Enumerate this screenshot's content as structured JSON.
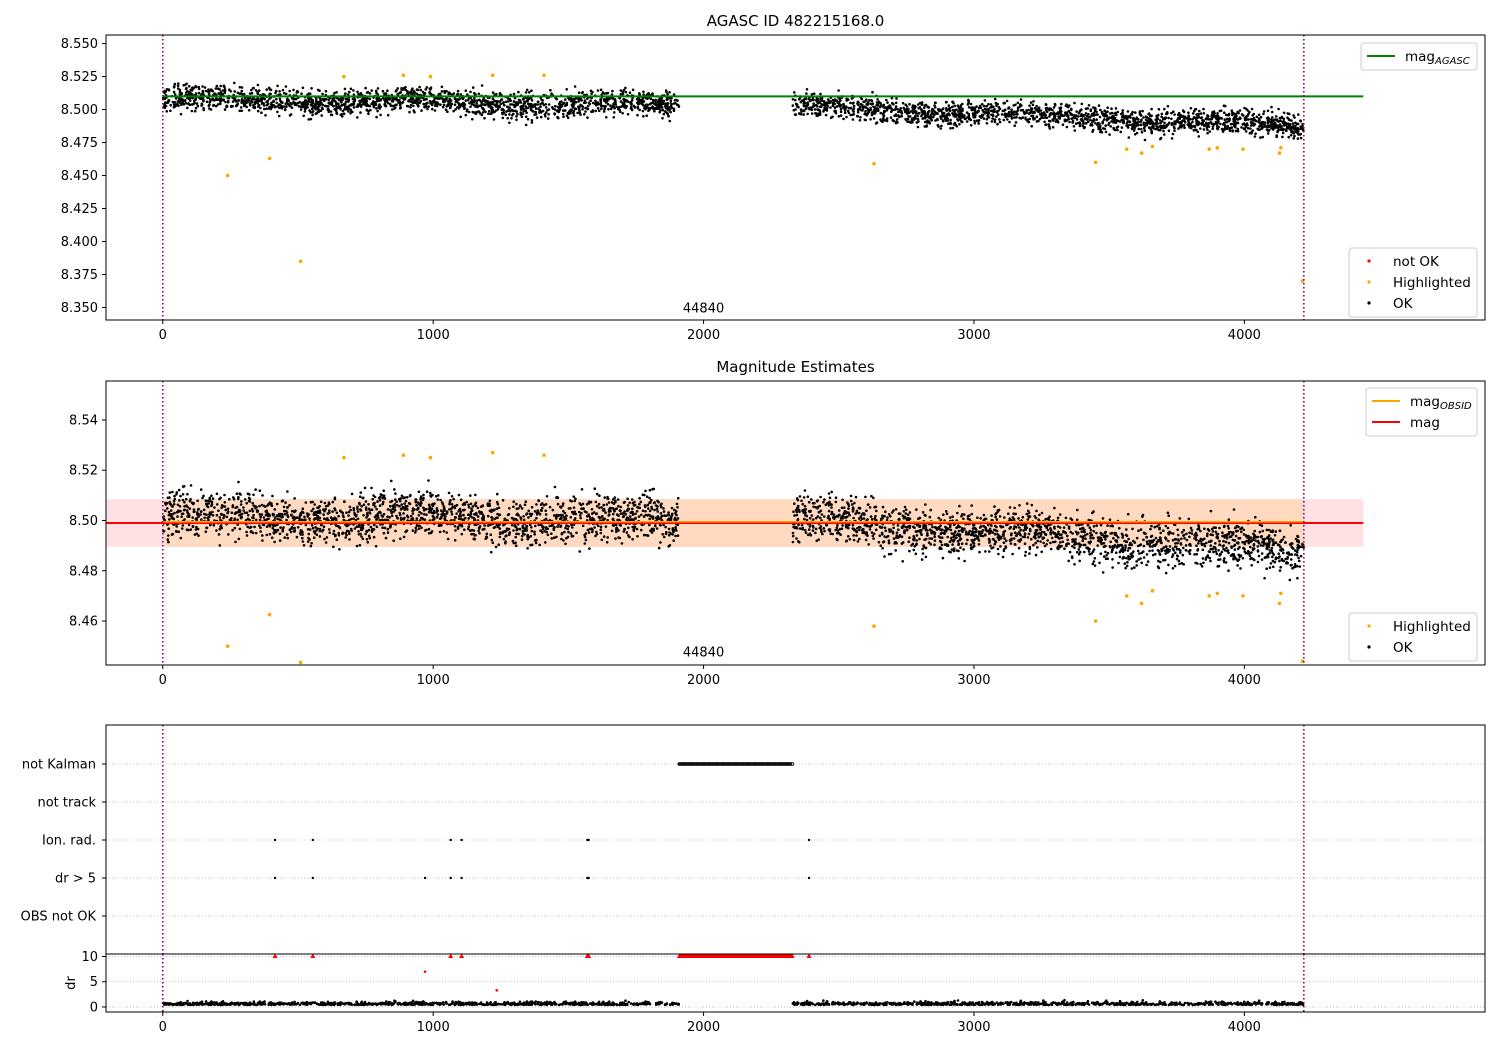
{
  "chart_data": [
    {
      "type": "scatter",
      "title": "AGASC ID 482215168.0",
      "xlim": [
        -210,
        4890
      ],
      "ylim": [
        8.3405,
        8.5565
      ],
      "x_ticks": [
        0,
        1000,
        2000,
        3000,
        4000
      ],
      "y_ticks": [
        8.35,
        8.375,
        8.4,
        8.425,
        8.45,
        8.475,
        8.5,
        8.525,
        8.55
      ],
      "y_tick_labels": [
        "8.350",
        "8.375",
        "8.400",
        "8.425",
        "8.450",
        "8.475",
        "8.500",
        "8.525",
        "8.550"
      ],
      "vlines": [
        0,
        4220
      ],
      "annotation": {
        "text": "44840",
        "x": 2000,
        "y": 8.3445
      },
      "lines": [
        {
          "name": "mag_AGASC",
          "label_main": "mag",
          "label_sub": "AGASC",
          "color": "#008000",
          "x": [
            0,
            4440
          ],
          "y": [
            8.51,
            8.51
          ]
        }
      ],
      "legend_points": [
        {
          "name": "not OK",
          "color": "#ff0000"
        },
        {
          "name": "Highlighted",
          "color": "#ffa500"
        },
        {
          "name": "OK",
          "color": "#000000"
        }
      ],
      "ok_segments": [
        {
          "x0": 0,
          "x1": 1910,
          "y0": 8.508,
          "y1": 8.503,
          "spread": 0.0062
        },
        {
          "x0": 2330,
          "x1": 4220,
          "y0": 8.503,
          "y1": 8.487,
          "spread": 0.006
        }
      ],
      "highlighted": [
        [
          240,
          8.45
        ],
        [
          395,
          8.463
        ],
        [
          510,
          8.385
        ],
        [
          670,
          8.525
        ],
        [
          890,
          8.526
        ],
        [
          990,
          8.525
        ],
        [
          1220,
          8.526
        ],
        [
          1410,
          8.526
        ],
        [
          2630,
          8.459
        ],
        [
          3450,
          8.46
        ],
        [
          3565,
          8.47
        ],
        [
          3620,
          8.467
        ],
        [
          3660,
          8.472
        ],
        [
          3870,
          8.47
        ],
        [
          3900,
          8.471
        ],
        [
          3995,
          8.47
        ],
        [
          4130,
          8.467
        ],
        [
          4135,
          8.471
        ],
        [
          4215,
          8.37
        ]
      ]
    },
    {
      "type": "scatter",
      "title": "Magnitude Estimates",
      "xlim": [
        -210,
        4890
      ],
      "ylim": [
        8.4425,
        8.5555
      ],
      "x_ticks": [
        0,
        1000,
        2000,
        3000,
        4000
      ],
      "y_ticks": [
        8.46,
        8.48,
        8.5,
        8.52,
        8.54
      ],
      "y_tick_labels": [
        "8.46",
        "8.48",
        "8.50",
        "8.52",
        "8.54"
      ],
      "vlines": [
        0,
        4220
      ],
      "annotation": {
        "text": "44840",
        "x": 2000,
        "y": 8.445
      },
      "band": {
        "x0": -210,
        "x1": 4440,
        "y0": 8.4895,
        "y1": 8.5085,
        "color": "#ffcdd2"
      },
      "obsid_band": {
        "x0": 0,
        "x1": 4220,
        "y0": 8.4895,
        "y1": 8.5085,
        "color": "#ffd8b8"
      },
      "lines": [
        {
          "name": "mag_OBSID",
          "label_main": "mag",
          "label_sub": "OBSID",
          "color": "#ffa500",
          "x": [
            0,
            4220
          ],
          "y": [
            8.4995,
            8.4995
          ]
        },
        {
          "name": "mag",
          "label_main": "mag",
          "label_sub": "",
          "color": "#ff0000",
          "x": [
            -210,
            4440
          ],
          "y": [
            8.499,
            8.499
          ]
        }
      ],
      "legend_points": [
        {
          "name": "Highlighted",
          "color": "#ffa500"
        },
        {
          "name": "OK",
          "color": "#000000"
        }
      ],
      "ok_segments": [
        {
          "x0": 0,
          "x1": 1910,
          "y0": 8.502,
          "y1": 8.5,
          "spread": 0.006
        },
        {
          "x0": 2330,
          "x1": 4220,
          "y0": 8.5,
          "y1": 8.488,
          "spread": 0.006
        }
      ],
      "highlighted": [
        [
          240,
          8.45
        ],
        [
          395,
          8.4625
        ],
        [
          510,
          8.4435
        ],
        [
          670,
          8.525
        ],
        [
          890,
          8.526
        ],
        [
          990,
          8.525
        ],
        [
          1220,
          8.527
        ],
        [
          1410,
          8.526
        ],
        [
          2630,
          8.458
        ],
        [
          3450,
          8.46
        ],
        [
          3565,
          8.47
        ],
        [
          3620,
          8.467
        ],
        [
          3660,
          8.472
        ],
        [
          3870,
          8.47
        ],
        [
          3900,
          8.471
        ],
        [
          3995,
          8.47
        ],
        [
          4130,
          8.467
        ],
        [
          4135,
          8.471
        ],
        [
          4215,
          8.444
        ]
      ]
    },
    {
      "type": "scatter",
      "title": "",
      "xlim": [
        -210,
        4890
      ],
      "categories": [
        "not Kalman",
        "not track",
        "Ion. rad.",
        "dr > 5",
        "OBS not OK"
      ],
      "vlines": [
        0,
        4220
      ],
      "flags": {
        "not Kalman": {
          "x0": 1910,
          "x1": 2330
        },
        "not track": [],
        "Ion. rad.": [
          415,
          555,
          1065,
          1105,
          1570,
          1575,
          2390
        ],
        "dr > 5": [
          415,
          555,
          970,
          1065,
          1105,
          1570,
          1575,
          2390
        ],
        "OBS not OK": []
      }
    },
    {
      "type": "scatter",
      "title": "",
      "ylabel": "dr",
      "xlim": [
        -210,
        4890
      ],
      "ylim": [
        -1,
        10.5
      ],
      "x_ticks": [
        0,
        1000,
        2000,
        3000,
        4000
      ],
      "y_ticks": [
        0,
        5,
        10
      ],
      "y_tick_labels": [
        "0",
        "5",
        "10"
      ],
      "vlines": [
        0,
        4220
      ],
      "capped_points": [
        415,
        555,
        1065,
        1105,
        1570,
        1575,
        2390
      ],
      "capped_range": [
        1910,
        2330
      ],
      "other_points": [
        [
          970,
          7
        ],
        [
          1235,
          3.3
        ]
      ],
      "ok_segments": [
        {
          "x0": 0,
          "x1": 1910,
          "y": 0.4,
          "spread": 0.3
        },
        {
          "x0": 2330,
          "x1": 4220,
          "y": 0.4,
          "spread": 0.3
        }
      ]
    }
  ]
}
